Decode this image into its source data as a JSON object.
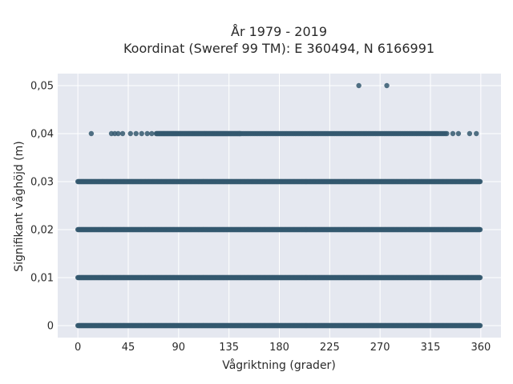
{
  "chart_data": {
    "type": "scatter",
    "title": [
      "År 1979 - 2019",
      "Koordinat (Sweref 99 TM): E 360494, N 6166991"
    ],
    "xlabel": "Vågriktning (grader)",
    "ylabel": "Signifikant våghöjd (m)",
    "xlim": [
      -18,
      378
    ],
    "ylim": [
      -0.0025,
      0.0525
    ],
    "xticks": [
      0,
      45,
      90,
      135,
      180,
      225,
      270,
      315,
      360
    ],
    "xtick_labels": [
      "0",
      "45",
      "90",
      "135",
      "180",
      "225",
      "270",
      "315",
      "360"
    ],
    "yticks": [
      0,
      0.01,
      0.02,
      0.03,
      0.04,
      0.05
    ],
    "ytick_labels": [
      "0",
      "0,01",
      "0,02",
      "0,03",
      "0,04",
      "0,05"
    ],
    "grid": true,
    "marker_color": "#34586e",
    "background_color": "#e5e8f0",
    "series": [
      {
        "y": 0.0,
        "x_range": [
          0,
          360
        ],
        "density": "high"
      },
      {
        "y": 0.01,
        "x_range": [
          0,
          360
        ],
        "density": "high"
      },
      {
        "y": 0.02,
        "x_range": [
          0,
          360
        ],
        "density": "high"
      },
      {
        "y": 0.03,
        "x_range": [
          0,
          360
        ],
        "density": "high"
      },
      {
        "y": 0.04,
        "x_range": [
          12,
          356
        ],
        "density": "medium"
      }
    ],
    "outliers": [
      {
        "x": 251,
        "y": 0.05
      },
      {
        "x": 276,
        "y": 0.05
      }
    ]
  }
}
